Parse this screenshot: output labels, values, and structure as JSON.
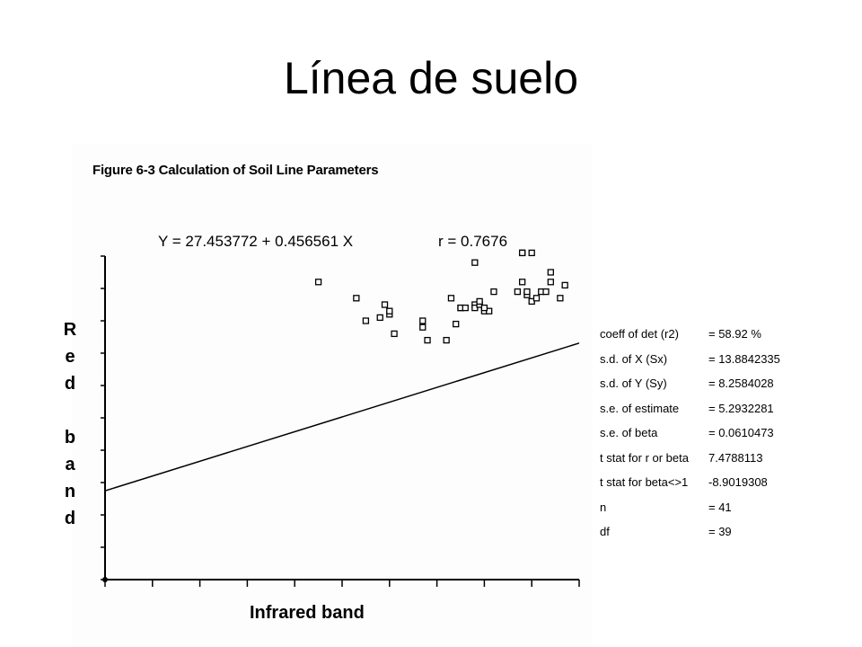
{
  "slide": {
    "title": "Línea de suelo"
  },
  "figure": {
    "caption": "Figure 6-3  Calculation of Soil Line Parameters"
  },
  "chart_data": {
    "type": "scatter",
    "title": "Y = 27.453772 + 0.456561 X",
    "annotation": "r = 0.7676",
    "xlabel": "Infrared band",
    "ylabel": "Red band",
    "xlim": [
      0,
      100
    ],
    "ylim": [
      0,
      100
    ],
    "grid": false,
    "regression": {
      "intercept": 27.453772,
      "slope": 0.456561
    },
    "x": [
      45,
      53,
      55,
      58,
      59,
      60,
      60,
      61,
      67,
      68,
      67,
      72,
      73,
      74,
      75,
      75,
      76,
      78,
      78,
      78,
      79,
      79,
      80,
      81,
      80,
      82,
      87,
      88,
      88,
      88,
      89,
      89,
      90,
      90,
      91,
      92,
      93,
      94,
      94,
      96,
      97
    ],
    "y": [
      92,
      87,
      80,
      81,
      85,
      82,
      83,
      76,
      78,
      74,
      80,
      74,
      87,
      79,
      84,
      84,
      84,
      85,
      84,
      98,
      85,
      86,
      83,
      83,
      84,
      89,
      89,
      92,
      101,
      101,
      88,
      89,
      101,
      86,
      87,
      89,
      89,
      92,
      95,
      87,
      91
    ]
  },
  "stats": [
    {
      "label": "coeff of det (r2)",
      "value": "= 58.92 %"
    },
    {
      "label": "s.d. of X    (Sx)",
      "value": "= 13.8842335"
    },
    {
      "label": "s.d. of Y    (Sy)",
      "value": "= 8.2584028"
    },
    {
      "label": "s.e. of estimate",
      "value": "= 5.2932281"
    },
    {
      "label": "s.e. of beta",
      "value": "= 0.0610473"
    },
    {
      "label": "t stat for r or beta",
      "value": "7.4788113"
    },
    {
      "label": "t stat for beta<>1",
      "value": "-8.9019308"
    },
    {
      "label": "n",
      "value": "= 41"
    },
    {
      "label": "df",
      "value": "= 39"
    }
  ]
}
